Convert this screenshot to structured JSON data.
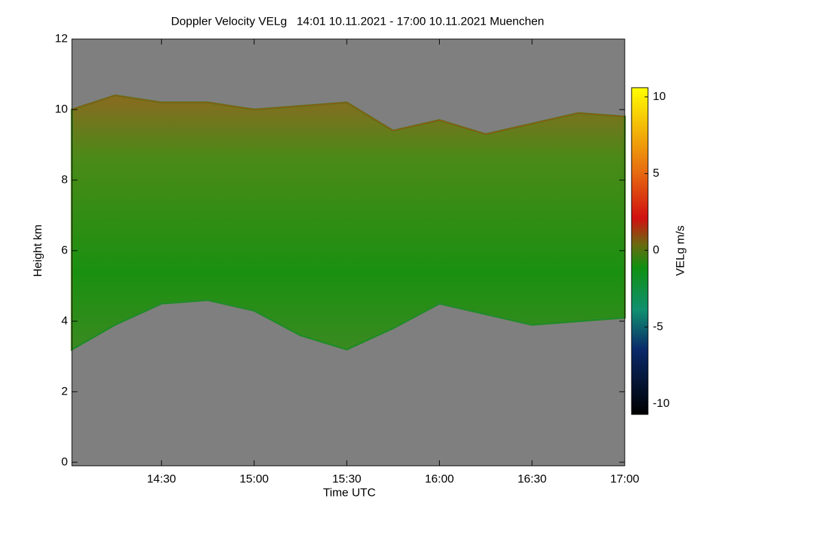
{
  "chart_data": {
    "type": "time-height",
    "title": "Doppler Velocity VELg   14:01 10.11.2021 - 17:00 10.11.2021 Muenchen",
    "x_label": "Time UTC",
    "y_label": "Height km",
    "colorbar_label": "VELg m/s",
    "xlim": [
      "14:01",
      "17:00"
    ],
    "xticks": [
      "14:30",
      "15:00",
      "15:30",
      "16:00",
      "16:30",
      "17:00"
    ],
    "ylim": [
      -0.1,
      12
    ],
    "yticks": [
      0,
      2,
      4,
      6,
      8,
      10,
      12
    ],
    "zlim": [
      -10.7,
      10.6
    ],
    "zticks": [
      -10,
      -5,
      0,
      5,
      10
    ],
    "background_color": "#7f7f7f",
    "cloud_color": "#3f8a14",
    "x": [
      "14:01",
      "14:15",
      "14:30",
      "14:45",
      "15:00",
      "15:15",
      "15:30",
      "15:45",
      "16:00",
      "16:15",
      "16:30",
      "16:45",
      "17:00"
    ],
    "cloud_top": [
      10,
      10.4,
      10.2,
      10.2,
      10,
      10.1,
      10.2,
      9.4,
      9.7,
      9.3,
      9.6,
      9.9,
      9.8
    ],
    "cloud_base": [
      3.2,
      3.9,
      4.5,
      4.6,
      4.3,
      3.6,
      3.2,
      3.8,
      4.5,
      4.2,
      3.9,
      4,
      4.1
    ]
  }
}
